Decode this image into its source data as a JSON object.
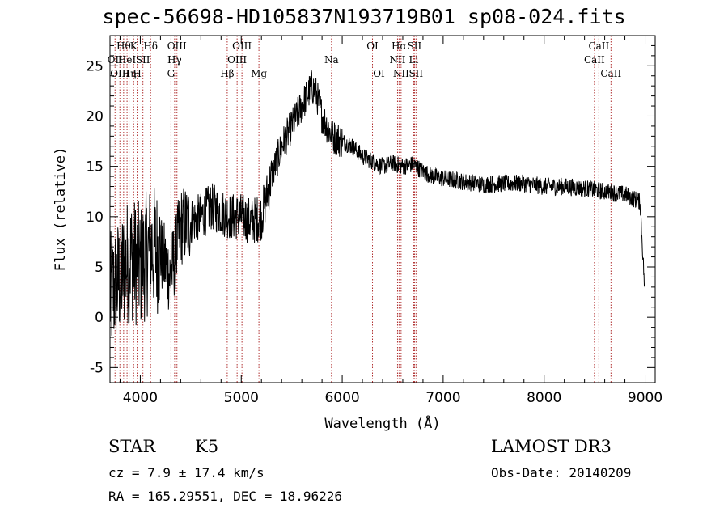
{
  "title": "spec-56698-HD105837N193719B01_sp08-024.fits",
  "info": {
    "class": "STAR",
    "subclass": "K5",
    "survey": "LAMOST DR3",
    "cz": "cz = 7.9 ± 17.4 km/s",
    "obs_date": "Obs-Date: 20140209",
    "coords": "RA = 165.29551, DEC =  18.96226"
  },
  "chart_data": {
    "type": "line",
    "xlabel": "Wavelength (Å)",
    "ylabel": "Flux (relative)",
    "xlim": [
      3700,
      9100
    ],
    "ylim": [
      -6.5,
      28
    ],
    "xticks": [
      4000,
      5000,
      6000,
      7000,
      8000,
      9000
    ],
    "yticks": [
      -5,
      0,
      5,
      10,
      15,
      20,
      25
    ],
    "line_color": "#000000",
    "marker_color": "#b03030",
    "spectrum_anchors": [
      [
        3700,
        2
      ],
      [
        3800,
        4
      ],
      [
        3900,
        6
      ],
      [
        4000,
        5
      ],
      [
        4100,
        7
      ],
      [
        4200,
        6.5
      ],
      [
        4300,
        4
      ],
      [
        4400,
        9
      ],
      [
        4500,
        9.5
      ],
      [
        4600,
        10
      ],
      [
        4700,
        11
      ],
      [
        4800,
        10.5
      ],
      [
        4900,
        10
      ],
      [
        5000,
        10
      ],
      [
        5100,
        9.5
      ],
      [
        5200,
        10
      ],
      [
        5300,
        14
      ],
      [
        5400,
        17
      ],
      [
        5500,
        19
      ],
      [
        5600,
        21
      ],
      [
        5700,
        23
      ],
      [
        5750,
        22
      ],
      [
        5800,
        20
      ],
      [
        5900,
        18
      ],
      [
        6000,
        17.5
      ],
      [
        6100,
        17
      ],
      [
        6200,
        16
      ],
      [
        6300,
        15.5
      ],
      [
        6400,
        15
      ],
      [
        6500,
        15.3
      ],
      [
        6600,
        15
      ],
      [
        6700,
        15.2
      ],
      [
        6800,
        14.5
      ],
      [
        6900,
        14
      ],
      [
        7000,
        13.8
      ],
      [
        7200,
        13.5
      ],
      [
        7400,
        13.2
      ],
      [
        7600,
        13.3
      ],
      [
        7800,
        13.3
      ],
      [
        8000,
        13
      ],
      [
        8200,
        13
      ],
      [
        8400,
        12.8
      ],
      [
        8600,
        12.5
      ],
      [
        8800,
        12.2
      ],
      [
        8950,
        11.5
      ],
      [
        9000,
        2
      ]
    ],
    "lines": [
      {
        "wave": 3750,
        "label": "OII",
        "row": 2
      },
      {
        "wave": 3798,
        "label": "OIII",
        "row": 3
      },
      {
        "wave": 3835,
        "label": "Hθ",
        "row": 1
      },
      {
        "wave": 3869,
        "label": "HeI",
        "row": 2
      },
      {
        "wave": 3889,
        "label": "Hη",
        "row": 3
      },
      {
        "wave": 3934,
        "label": "K",
        "row": 1
      },
      {
        "wave": 3969,
        "label": "H",
        "row": 3
      },
      {
        "wave": 4026,
        "label": "SII",
        "row": 2
      },
      {
        "wave": 4102,
        "label": "Hδ",
        "row": 1
      },
      {
        "wave": 4304,
        "label": "G",
        "row": 3
      },
      {
        "wave": 4340,
        "label": "Hγ",
        "row": 2
      },
      {
        "wave": 4363,
        "label": "OIII",
        "row": 1
      },
      {
        "wave": 4861,
        "label": "Hβ",
        "row": 3
      },
      {
        "wave": 4959,
        "label": "OIII",
        "row": 2
      },
      {
        "wave": 5007,
        "label": "OIII",
        "row": 1
      },
      {
        "wave": 5175,
        "label": "Mg",
        "row": 3
      },
      {
        "wave": 5894,
        "label": "Na",
        "row": 2
      },
      {
        "wave": 6300,
        "label": "OI",
        "row": 1
      },
      {
        "wave": 6364,
        "label": "OI",
        "row": 3
      },
      {
        "wave": 6548,
        "label": "NII",
        "row": 2
      },
      {
        "wave": 6563,
        "label": "Hα",
        "row": 1
      },
      {
        "wave": 6583,
        "label": "NII",
        "row": 3
      },
      {
        "wave": 6708,
        "label": "Li",
        "row": 2
      },
      {
        "wave": 6716,
        "label": "SII",
        "row": 1
      },
      {
        "wave": 6731,
        "label": "SII",
        "row": 3
      },
      {
        "wave": 8498,
        "label": "CaII",
        "row": 2
      },
      {
        "wave": 8542,
        "label": "CaII",
        "row": 1
      },
      {
        "wave": 8662,
        "label": "CaII",
        "row": 3
      }
    ]
  }
}
